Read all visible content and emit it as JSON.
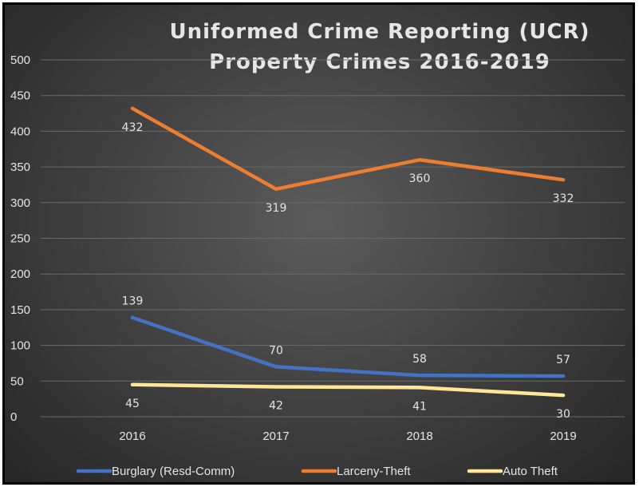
{
  "chart_data": {
    "type": "line",
    "title_lines": [
      "Uniformed Crime Reporting (UCR)",
      "Property Crimes 2016-2019"
    ],
    "categories": [
      "2016",
      "2017",
      "2018",
      "2019"
    ],
    "ylim": [
      0,
      500
    ],
    "yticks": [
      0,
      50,
      100,
      150,
      200,
      250,
      300,
      350,
      400,
      450,
      500
    ],
    "grid": true,
    "legend_position": "bottom",
    "series": [
      {
        "name": "Burglary (Resd-Comm)",
        "values": [
          139,
          70,
          58,
          57
        ],
        "color": "#4472c4",
        "label_pos": "above"
      },
      {
        "name": "Larceny-Theft",
        "values": [
          432,
          319,
          360,
          332
        ],
        "color": "#ed7d31",
        "label_pos": "below"
      },
      {
        "name": "Auto Theft",
        "values": [
          45,
          42,
          41,
          30
        ],
        "color": "#ffe699",
        "label_pos": "below"
      }
    ]
  }
}
